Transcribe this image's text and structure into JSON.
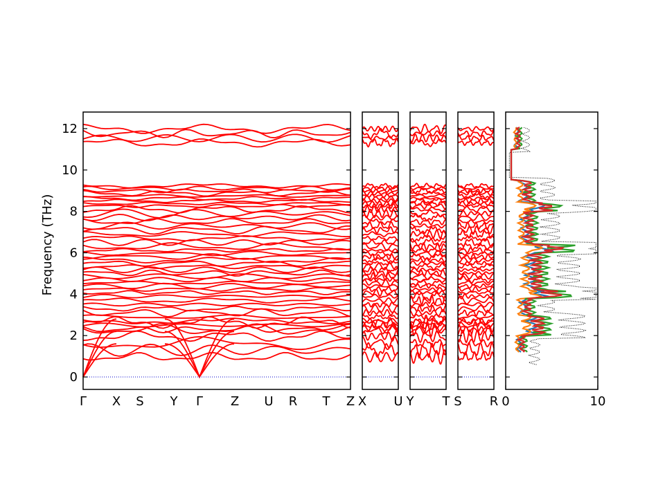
{
  "chart_data": {
    "type": "line",
    "ylabel": "Frequency (THz)",
    "ylim": [
      -0.6,
      12.8
    ],
    "y_ticks": [
      "0",
      "2",
      "4",
      "6",
      "8",
      "10",
      "12"
    ],
    "band_color": "#ff0000",
    "zero_line_color": "#0000cc",
    "panels": [
      {
        "x_ticks": [
          "Γ",
          "X",
          "S",
          "Y",
          "Γ",
          "Z",
          "U",
          "R",
          "T",
          "Z"
        ]
      },
      {
        "x_ticks": [
          "X",
          "U"
        ]
      },
      {
        "x_ticks": [
          "Y",
          "T"
        ]
      },
      {
        "x_ticks": [
          "S",
          "R"
        ]
      }
    ],
    "band_groups": [
      {
        "range": [
          11.2,
          12.1
        ],
        "count": 4
      },
      {
        "range": [
          8.2,
          9.3
        ],
        "count": 9
      },
      {
        "range": [
          6.2,
          8.2
        ],
        "count": 10
      },
      {
        "range": [
          4.0,
          6.2
        ],
        "count": 14
      },
      {
        "range": [
          2.2,
          4.0
        ],
        "count": 9
      },
      {
        "range": [
          0.8,
          2.8
        ],
        "count": 6
      }
    ],
    "dos_panel": {
      "xlim": [
        0,
        10
      ],
      "x_ticks": [
        "0",
        "10"
      ],
      "total_color": "#000000",
      "series": [
        {
          "color": "#1f77b4"
        },
        {
          "color": "#ff7f0e"
        },
        {
          "color": "#2ca02c"
        },
        {
          "color": "#d62728"
        }
      ]
    }
  }
}
